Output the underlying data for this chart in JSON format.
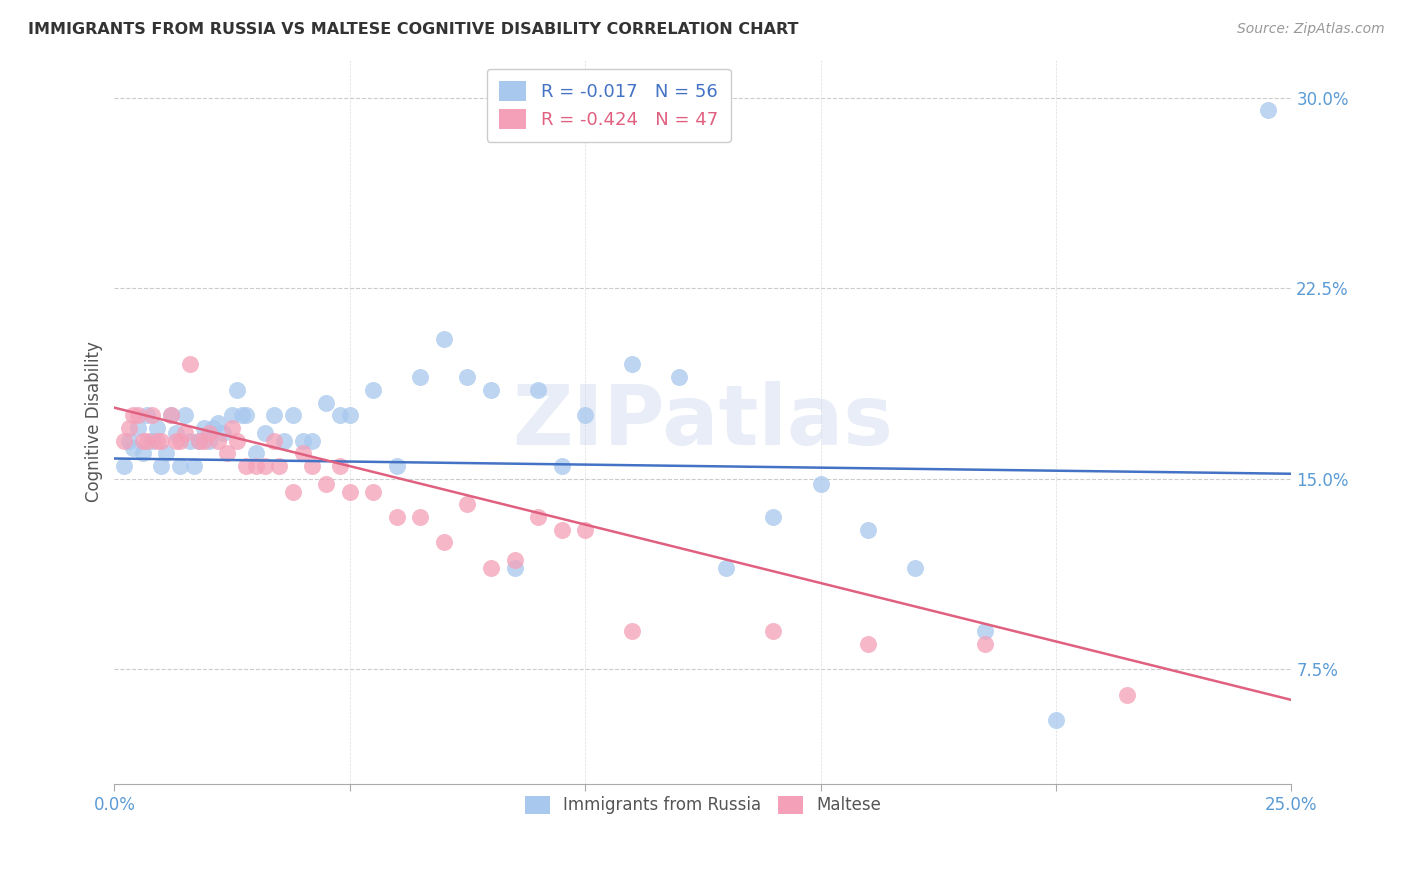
{
  "title": "IMMIGRANTS FROM RUSSIA VS MALTESE COGNITIVE DISABILITY CORRELATION CHART",
  "source": "Source: ZipAtlas.com",
  "ylabel": "Cognitive Disability",
  "legend_label1": "Immigrants from Russia",
  "legend_label2": "Maltese",
  "R1": "-0.017",
  "N1": "56",
  "R2": "-0.424",
  "N2": "47",
  "xlim": [
    0.0,
    0.25
  ],
  "ylim": [
    0.03,
    0.315
  ],
  "xticks": [
    0.0,
    0.25
  ],
  "yticks": [
    0.075,
    0.15,
    0.225,
    0.3
  ],
  "xticklabels": [
    "0.0%",
    "25.0%"
  ],
  "yticklabels": [
    "7.5%",
    "15.0%",
    "22.5%",
    "30.0%"
  ],
  "color_blue": "#A8C8EE",
  "color_pink": "#F4A0B8",
  "color_line_blue": "#4472C4",
  "color_line_pink": "#E06080",
  "color_text_axis": "#5B9BD5",
  "color_title": "#333333",
  "color_source": "#999999",
  "background_color": "#ffffff",
  "blue_x": [
    0.002,
    0.003,
    0.004,
    0.005,
    0.006,
    0.007,
    0.008,
    0.009,
    0.01,
    0.011,
    0.012,
    0.013,
    0.014,
    0.015,
    0.016,
    0.017,
    0.018,
    0.019,
    0.02,
    0.021,
    0.022,
    0.023,
    0.025,
    0.026,
    0.027,
    0.028,
    0.03,
    0.032,
    0.034,
    0.036,
    0.038,
    0.04,
    0.042,
    0.045,
    0.048,
    0.05,
    0.055,
    0.06,
    0.065,
    0.07,
    0.075,
    0.08,
    0.085,
    0.09,
    0.095,
    0.1,
    0.11,
    0.12,
    0.13,
    0.14,
    0.15,
    0.16,
    0.17,
    0.185,
    0.2,
    0.245
  ],
  "blue_y": [
    0.155,
    0.165,
    0.162,
    0.17,
    0.16,
    0.175,
    0.165,
    0.17,
    0.155,
    0.16,
    0.175,
    0.168,
    0.155,
    0.175,
    0.165,
    0.155,
    0.165,
    0.17,
    0.165,
    0.17,
    0.172,
    0.168,
    0.175,
    0.185,
    0.175,
    0.175,
    0.16,
    0.168,
    0.175,
    0.165,
    0.175,
    0.165,
    0.165,
    0.18,
    0.175,
    0.175,
    0.185,
    0.155,
    0.19,
    0.205,
    0.19,
    0.185,
    0.115,
    0.185,
    0.155,
    0.175,
    0.195,
    0.19,
    0.115,
    0.135,
    0.148,
    0.13,
    0.115,
    0.09,
    0.055,
    0.295
  ],
  "pink_x": [
    0.002,
    0.003,
    0.004,
    0.005,
    0.006,
    0.007,
    0.008,
    0.009,
    0.01,
    0.012,
    0.013,
    0.014,
    0.015,
    0.016,
    0.018,
    0.019,
    0.02,
    0.022,
    0.024,
    0.025,
    0.026,
    0.028,
    0.03,
    0.032,
    0.034,
    0.035,
    0.038,
    0.04,
    0.042,
    0.045,
    0.048,
    0.05,
    0.055,
    0.06,
    0.065,
    0.07,
    0.075,
    0.08,
    0.085,
    0.09,
    0.095,
    0.1,
    0.11,
    0.14,
    0.16,
    0.185,
    0.215
  ],
  "pink_y": [
    0.165,
    0.17,
    0.175,
    0.175,
    0.165,
    0.165,
    0.175,
    0.165,
    0.165,
    0.175,
    0.165,
    0.165,
    0.168,
    0.195,
    0.165,
    0.165,
    0.168,
    0.165,
    0.16,
    0.17,
    0.165,
    0.155,
    0.155,
    0.155,
    0.165,
    0.155,
    0.145,
    0.16,
    0.155,
    0.148,
    0.155,
    0.145,
    0.145,
    0.135,
    0.135,
    0.125,
    0.14,
    0.115,
    0.118,
    0.135,
    0.13,
    0.13,
    0.09,
    0.09,
    0.085,
    0.085,
    0.065
  ],
  "blue_line_x": [
    0.0,
    0.25
  ],
  "blue_line_y": [
    0.158,
    0.152
  ],
  "pink_line_x": [
    0.0,
    0.25
  ],
  "pink_line_y": [
    0.178,
    0.063
  ]
}
